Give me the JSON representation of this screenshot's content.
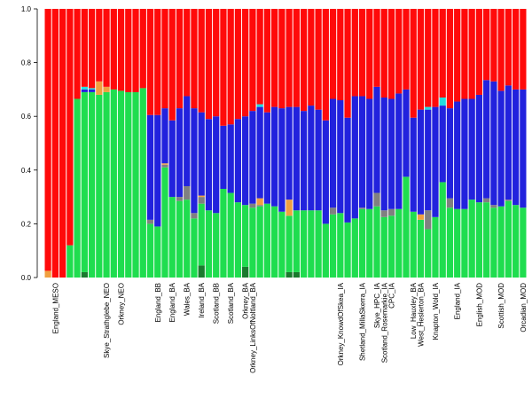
{
  "chart_data": {
    "type": "bar",
    "stacked": true,
    "ylim": [
      0,
      1
    ],
    "yticks": [
      "0.0",
      "0.2",
      "0.4",
      "0.6",
      "0.8",
      "1.0"
    ],
    "colors": {
      "darkgreen": "#1a7a2e",
      "green": "#1fdd4f",
      "gray": "#808080",
      "orange": "#f0a040",
      "blue": "#2222dd",
      "cyan": "#22dddd",
      "red": "#ff0a0a"
    },
    "stack_order": [
      "darkgreen",
      "green",
      "gray",
      "orange",
      "blue",
      "cyan",
      "red"
    ],
    "bars": [
      {
        "green": 0.0,
        "gray": 0.0,
        "orange": 0.025,
        "blue": 0.0
      },
      {
        "green": 0.0,
        "gray": 0.0,
        "orange": 0.0,
        "blue": 0.0
      },
      {
        "green": 0.0,
        "gray": 0.0,
        "orange": 0.0,
        "blue": 0.0
      },
      {
        "green": 0.12,
        "gray": 0.0,
        "orange": 0.0,
        "blue": 0.0
      },
      {
        "green": 0.665,
        "gray": 0.0,
        "orange": 0.0,
        "blue": 0.0
      },
      {
        "darkgreen": 0.02,
        "green": 0.67,
        "gray": 0.0,
        "orange": 0.0,
        "blue": 0.01,
        "cyan": 0.01
      },
      {
        "green": 0.69,
        "gray": 0.0,
        "orange": 0.0,
        "blue": 0.01,
        "cyan": 0.005
      },
      {
        "green": 0.68,
        "gray": 0.0,
        "orange": 0.05,
        "blue": 0.0
      },
      {
        "green": 0.69,
        "gray": 0.0,
        "orange": 0.02,
        "blue": 0.0
      },
      {
        "green": 0.7,
        "gray": 0.0,
        "orange": 0.0,
        "blue": 0.0
      },
      {
        "green": 0.695,
        "gray": 0.0,
        "orange": 0.0,
        "blue": 0.0
      },
      {
        "green": 0.69,
        "gray": 0.0,
        "orange": 0.0,
        "blue": 0.0
      },
      {
        "green": 0.69,
        "gray": 0.0,
        "orange": 0.0,
        "blue": 0.0
      },
      {
        "green": 0.705,
        "gray": 0.0,
        "orange": 0.0,
        "blue": 0.0
      },
      {
        "green": 0.2,
        "gray": 0.015,
        "orange": 0.0,
        "blue": 0.39
      },
      {
        "green": 0.19,
        "gray": 0.0,
        "orange": 0.0,
        "blue": 0.415
      },
      {
        "green": 0.41,
        "gray": 0.01,
        "orange": 0.005,
        "blue": 0.205
      },
      {
        "green": 0.3,
        "gray": 0.0,
        "orange": 0.0,
        "blue": 0.285
      },
      {
        "green": 0.285,
        "gray": 0.015,
        "orange": 0.0,
        "blue": 0.33
      },
      {
        "green": 0.29,
        "gray": 0.05,
        "orange": 0.0,
        "blue": 0.335
      },
      {
        "green": 0.22,
        "gray": 0.02,
        "orange": 0.0,
        "blue": 0.39
      },
      {
        "darkgreen": 0.045,
        "green": 0.23,
        "gray": 0.025,
        "orange": 0.005,
        "blue": 0.31
      },
      {
        "green": 0.25,
        "gray": 0.0,
        "orange": 0.0,
        "blue": 0.34
      },
      {
        "green": 0.24,
        "gray": 0.0,
        "orange": 0.0,
        "blue": 0.36
      },
      {
        "green": 0.33,
        "gray": 0.0,
        "orange": 0.0,
        "blue": 0.235
      },
      {
        "green": 0.315,
        "gray": 0.0,
        "orange": 0.0,
        "blue": 0.255
      },
      {
        "green": 0.28,
        "gray": 0.0,
        "orange": 0.0,
        "blue": 0.31
      },
      {
        "darkgreen": 0.04,
        "green": 0.23,
        "gray": 0.0,
        "orange": 0.0,
        "blue": 0.33
      },
      {
        "green": 0.26,
        "gray": 0.015,
        "orange": 0.0,
        "blue": 0.345
      },
      {
        "green": 0.265,
        "gray": 0.005,
        "orange": 0.025,
        "blue": 0.34,
        "cyan": 0.01
      },
      {
        "green": 0.275,
        "gray": 0.0,
        "orange": 0.0,
        "blue": 0.34
      },
      {
        "green": 0.265,
        "gray": 0.0,
        "orange": 0.0,
        "blue": 0.37
      },
      {
        "green": 0.245,
        "gray": 0.0,
        "orange": 0.0,
        "blue": 0.385
      },
      {
        "darkgreen": 0.02,
        "green": 0.21,
        "gray": 0.0,
        "orange": 0.06,
        "blue": 0.345
      },
      {
        "darkgreen": 0.02,
        "green": 0.23,
        "gray": 0.0,
        "orange": 0.0,
        "blue": 0.385
      },
      {
        "green": 0.25,
        "gray": 0.0,
        "orange": 0.0,
        "blue": 0.37
      },
      {
        "green": 0.25,
        "gray": 0.0,
        "orange": 0.0,
        "blue": 0.39
      },
      {
        "green": 0.25,
        "gray": 0.0,
        "orange": 0.0,
        "blue": 0.375
      },
      {
        "green": 0.2,
        "gray": 0.0,
        "orange": 0.0,
        "blue": 0.385
      },
      {
        "green": 0.235,
        "gray": 0.025,
        "orange": 0.0,
        "blue": 0.405
      },
      {
        "green": 0.24,
        "gray": 0.0,
        "orange": 0.0,
        "blue": 0.42
      },
      {
        "green": 0.205,
        "gray": 0.0,
        "orange": 0.0,
        "blue": 0.39
      },
      {
        "green": 0.22,
        "gray": 0.0,
        "orange": 0.0,
        "blue": 0.455
      },
      {
        "green": 0.255,
        "gray": 0.005,
        "orange": 0.0,
        "blue": 0.415
      },
      {
        "green": 0.255,
        "gray": 0.0,
        "orange": 0.0,
        "blue": 0.41
      },
      {
        "green": 0.265,
        "gray": 0.05,
        "orange": 0.0,
        "blue": 0.395
      },
      {
        "green": 0.225,
        "gray": 0.025,
        "orange": 0.0,
        "blue": 0.42
      },
      {
        "green": 0.23,
        "gray": 0.025,
        "orange": 0.0,
        "blue": 0.41
      },
      {
        "green": 0.255,
        "gray": 0.0,
        "orange": 0.0,
        "blue": 0.43
      },
      {
        "green": 0.375,
        "gray": 0.0,
        "orange": 0.0,
        "blue": 0.325
      },
      {
        "green": 0.245,
        "gray": 0.0,
        "orange": 0.0,
        "blue": 0.35
      },
      {
        "green": 0.215,
        "gray": 0.0,
        "orange": 0.02,
        "blue": 0.39
      },
      {
        "green": 0.18,
        "gray": 0.07,
        "orange": 0.0,
        "blue": 0.375,
        "cyan": 0.01
      },
      {
        "green": 0.225,
        "gray": 0.0,
        "orange": 0.0,
        "blue": 0.41
      },
      {
        "green": 0.355,
        "gray": 0.0,
        "orange": 0.0,
        "blue": 0.285,
        "cyan": 0.03
      },
      {
        "green": 0.26,
        "gray": 0.035,
        "orange": 0.0,
        "blue": 0.335
      },
      {
        "green": 0.255,
        "gray": 0.0,
        "orange": 0.0,
        "blue": 0.4
      },
      {
        "green": 0.255,
        "gray": 0.0,
        "orange": 0.0,
        "blue": 0.41
      },
      {
        "green": 0.29,
        "gray": 0.0,
        "orange": 0.0,
        "blue": 0.375
      },
      {
        "green": 0.28,
        "gray": 0.0,
        "orange": 0.0,
        "blue": 0.4
      },
      {
        "green": 0.28,
        "gray": 0.015,
        "orange": 0.0,
        "blue": 0.44
      },
      {
        "green": 0.26,
        "gray": 0.01,
        "orange": 0.0,
        "blue": 0.46
      },
      {
        "green": 0.265,
        "gray": 0.0,
        "orange": 0.0,
        "blue": 0.43
      },
      {
        "green": 0.285,
        "gray": 0.005,
        "orange": 0.0,
        "blue": 0.425
      },
      {
        "green": 0.27,
        "gray": 0.0,
        "orange": 0.0,
        "blue": 0.43
      },
      {
        "green": 0.26,
        "gray": 0.0,
        "orange": 0.0,
        "blue": 0.44
      }
    ],
    "category_labels": [
      {
        "index": 1,
        "text": "England_MESO"
      },
      {
        "index": 8,
        "text": "Skye_Strathglebe_NEO"
      },
      {
        "index": 10,
        "text": "Orkney_NEO"
      },
      {
        "index": 15,
        "text": "England_BB"
      },
      {
        "index": 17,
        "text": "England_BA"
      },
      {
        "index": 19,
        "text": "Wales_BA"
      },
      {
        "index": 21,
        "text": "Ireland_BA"
      },
      {
        "index": 23,
        "text": "Scotland_BB"
      },
      {
        "index": 25,
        "text": "Scotland_BA"
      },
      {
        "index": 27,
        "text": "Orkney_BA"
      },
      {
        "index": 28,
        "text": "Orkney_LinksOfNoltland_BA"
      },
      {
        "index": 40,
        "text": "Orkney_KnowdOfSkea_IA"
      },
      {
        "index": 43,
        "text": "Shetland_MillaSkerra_IA"
      },
      {
        "index": 45,
        "text": "Skye_HPC_IA"
      },
      {
        "index": 46,
        "text": "Scotland_Rosemarkie_IA"
      },
      {
        "index": 47,
        "text": "CPC_IA"
      },
      {
        "index": 50,
        "text": "Low_Hauxley_BA"
      },
      {
        "index": 51,
        "text": "West_Heslerton_BA"
      },
      {
        "index": 53,
        "text": "Knapton_Wold_IA"
      },
      {
        "index": 56,
        "text": "England_IA"
      },
      {
        "index": 59,
        "text": "English_MOD"
      },
      {
        "index": 62,
        "text": "Scottish_MOD"
      },
      {
        "index": 65,
        "text": "Orcadian_MOD"
      }
    ]
  }
}
